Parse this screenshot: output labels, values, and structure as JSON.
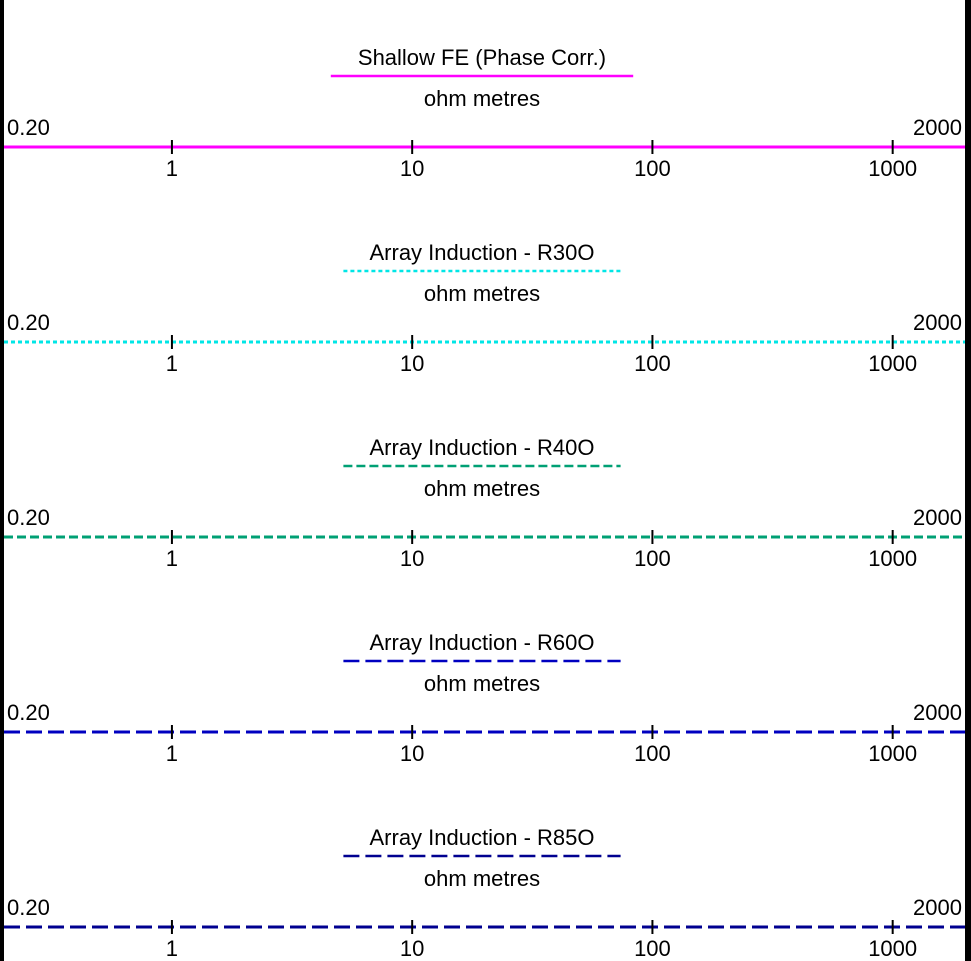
{
  "chart_data": [
    {
      "type": "line",
      "title": "Shallow FE (Phase Corr.)",
      "unit": "ohm metres",
      "scale": "log",
      "range": [
        0.2,
        2000
      ],
      "range_labels": [
        "0.20",
        "2000"
      ],
      "ticks": [
        1,
        10,
        100,
        1000
      ],
      "tick_labels": [
        "1",
        "10",
        "100",
        "1000"
      ],
      "color": "#ff00ff",
      "line_style": "solid"
    },
    {
      "type": "line",
      "title": "Array Induction - R30O",
      "unit": "ohm metres",
      "scale": "log",
      "range": [
        0.2,
        2000
      ],
      "range_labels": [
        "0.20",
        "2000"
      ],
      "ticks": [
        1,
        10,
        100,
        1000
      ],
      "tick_labels": [
        "1",
        "10",
        "100",
        "1000"
      ],
      "color": "#00e6e6",
      "line_style": "dotted"
    },
    {
      "type": "line",
      "title": "Array Induction - R40O",
      "unit": "ohm metres",
      "scale": "log",
      "range": [
        0.2,
        2000
      ],
      "range_labels": [
        "0.20",
        "2000"
      ],
      "ticks": [
        1,
        10,
        100,
        1000
      ],
      "tick_labels": [
        "1",
        "10",
        "100",
        "1000"
      ],
      "color": "#00a074",
      "line_style": "dashed"
    },
    {
      "type": "line",
      "title": "Array Induction - R60O",
      "unit": "ohm metres",
      "scale": "log",
      "range": [
        0.2,
        2000
      ],
      "range_labels": [
        "0.20",
        "2000"
      ],
      "ticks": [
        1,
        10,
        100,
        1000
      ],
      "tick_labels": [
        "1",
        "10",
        "100",
        "1000"
      ],
      "color": "#0000c0",
      "line_style": "long-dashed"
    },
    {
      "type": "line",
      "title": "Array Induction - R85O",
      "unit": "ohm metres",
      "scale": "log",
      "range": [
        0.2,
        2000
      ],
      "range_labels": [
        "0.20",
        "2000"
      ],
      "ticks": [
        1,
        10,
        100,
        1000
      ],
      "tick_labels": [
        "1",
        "10",
        "100",
        "1000"
      ],
      "color": "#000090",
      "line_style": "long-dashed"
    }
  ]
}
